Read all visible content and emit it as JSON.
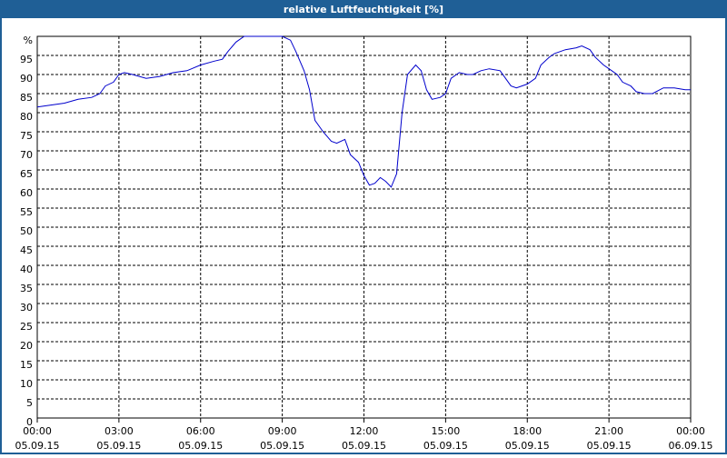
{
  "chart_data": {
    "type": "line",
    "title": "relative Luftfeuchtigkeit [%]",
    "x": [
      0,
      0.5,
      1,
      1.5,
      2,
      2.3,
      2.5,
      2.8,
      3,
      3.2,
      3.5,
      4,
      4.5,
      5,
      5.5,
      6,
      6.5,
      6.8,
      7,
      7.3,
      7.6,
      8,
      8.5,
      9,
      9.3,
      9.5,
      9.8,
      10,
      10.2,
      10.5,
      10.8,
      11,
      11.3,
      11.5,
      11.8,
      12,
      12.2,
      12.4,
      12.6,
      12.8,
      13,
      13.2,
      13.4,
      13.6,
      13.9,
      14.1,
      14.3,
      14.5,
      14.8,
      15,
      15.2,
      15.5,
      15.8,
      16,
      16.3,
      16.6,
      17,
      17.2,
      17.4,
      17.6,
      17.8,
      18,
      18.3,
      18.5,
      18.8,
      19,
      19.4,
      19.8,
      20,
      20.3,
      20.5,
      20.8,
      21,
      21.3,
      21.5,
      21.8,
      22,
      22.3,
      22.6,
      23,
      23.4,
      23.8,
      24
    ],
    "series": [
      {
        "name": "relative Luftfeuchtigkeit",
        "color": "#0000cc",
        "values": [
          81.5,
          82,
          82.5,
          83.5,
          84,
          85,
          87,
          88,
          90,
          90.5,
          90,
          89,
          89.5,
          90.5,
          91,
          92.5,
          93.5,
          94,
          96,
          98.5,
          100,
          100,
          100,
          100,
          99,
          96,
          91,
          86,
          78,
          75,
          72.5,
          72,
          73,
          69,
          67,
          63.5,
          61,
          61.5,
          63,
          62,
          60.5,
          64,
          80,
          90,
          92.5,
          91,
          86,
          83.5,
          84,
          85,
          89,
          90.5,
          90,
          90,
          91,
          91.5,
          91,
          89,
          87,
          86.5,
          87,
          87.5,
          89,
          92.5,
          94.5,
          95.5,
          96.5,
          97,
          97.5,
          96.5,
          94.5,
          92.5,
          91.5,
          90,
          88,
          87,
          85.5,
          85,
          85,
          86.5,
          86.5,
          86,
          86
        ]
      }
    ],
    "xlim": [
      0,
      24
    ],
    "xticks": [
      {
        "value": 0,
        "label": "00:00",
        "date": "05.09.15"
      },
      {
        "value": 3,
        "label": "03:00",
        "date": "05.09.15"
      },
      {
        "value": 6,
        "label": "06:00",
        "date": "05.09.15"
      },
      {
        "value": 9,
        "label": "09:00",
        "date": "05.09.15"
      },
      {
        "value": 12,
        "label": "12:00",
        "date": "05.09.15"
      },
      {
        "value": 15,
        "label": "15:00",
        "date": "05.09.15"
      },
      {
        "value": 18,
        "label": "18:00",
        "date": "05.09.15"
      },
      {
        "value": 21,
        "label": "21:00",
        "date": "05.09.15"
      },
      {
        "value": 24,
        "label": "00:00",
        "date": "06.09.15"
      }
    ],
    "ylim": [
      0,
      100
    ],
    "yticks": [
      0,
      5,
      10,
      15,
      20,
      25,
      30,
      35,
      40,
      45,
      50,
      55,
      60,
      65,
      70,
      75,
      80,
      85,
      90,
      95,
      {
        "value": 100,
        "label": "%"
      }
    ],
    "grid": true
  }
}
